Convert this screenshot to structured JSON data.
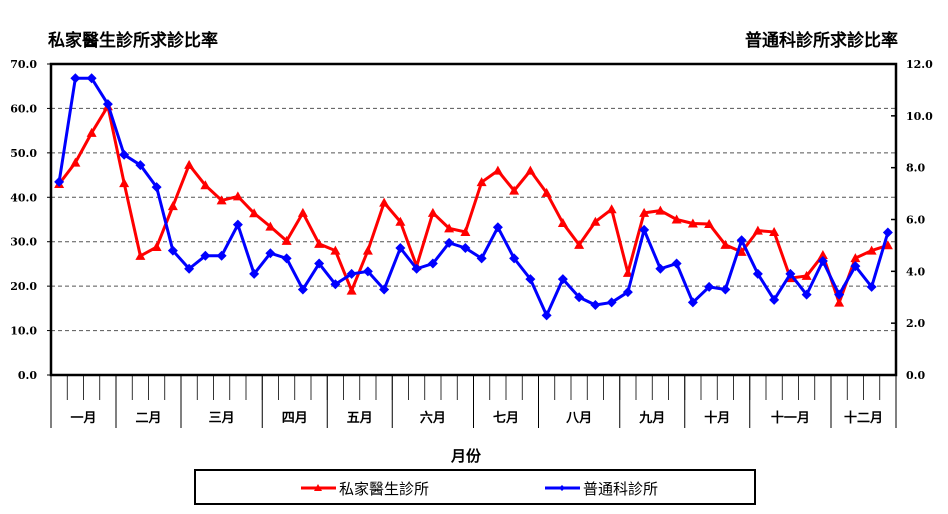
{
  "chart_data": {
    "type": "line",
    "title_left": "私家醫生診所求診比率",
    "title_right": "普通科診所求診比率",
    "xlabel": "月份",
    "months": [
      "一月",
      "二月",
      "三月",
      "四月",
      "五月",
      "六月",
      "七月",
      "八月",
      "九月",
      "十月",
      "十一月",
      "十二月"
    ],
    "weeks_per_month": [
      4,
      4,
      5,
      4,
      4,
      5,
      4,
      5,
      4,
      4,
      5,
      4
    ],
    "y_left": {
      "min": 0,
      "max": 70,
      "ticks": [
        "0.0",
        "10.0",
        "20.0",
        "30.0",
        "40.0",
        "50.0",
        "60.0",
        "70.0"
      ]
    },
    "y_right": {
      "min": 0,
      "max": 12,
      "ticks": [
        "0.0",
        "2.0",
        "4.0",
        "6.0",
        "8.0",
        "10.0",
        "12.0"
      ]
    },
    "grid": true,
    "legend_position": "bottom",
    "series": [
      {
        "name": "私家醫生診所",
        "axis": "left",
        "color": "#ff0000",
        "marker": "triangle",
        "values": [
          43,
          47.8,
          54.5,
          60.5,
          43.2,
          26.8,
          28.8,
          38,
          47.3,
          42.7,
          39.3,
          40.2,
          36.4,
          33.4,
          30.2,
          36.5,
          29.5,
          28,
          19,
          28,
          38.8,
          34.5,
          24.5,
          36.5,
          33,
          32.2,
          43.4,
          46,
          41.5,
          46,
          41,
          34.2,
          29.3,
          34.5,
          37.3,
          23,
          36.5,
          37,
          35,
          34.1,
          34,
          29.3,
          27.7,
          32.5,
          32.2,
          21.8,
          22.3,
          27,
          16.3,
          26.3,
          28,
          29.2
        ]
      },
      {
        "name": "普通科診所",
        "axis": "right",
        "color": "#0000ff",
        "marker": "diamond",
        "values": [
          7.45,
          11.45,
          11.45,
          10.45,
          8.5,
          8.1,
          7.25,
          4.8,
          4.1,
          4.6,
          4.6,
          5.8,
          3.9,
          4.7,
          4.5,
          3.3,
          4.3,
          3.5,
          3.9,
          4.0,
          3.3,
          4.9,
          4.1,
          4.3,
          5.1,
          4.9,
          4.5,
          5.7,
          4.5,
          3.7,
          2.3,
          3.7,
          3.0,
          2.7,
          2.8,
          3.2,
          5.6,
          4.1,
          4.3,
          2.8,
          3.4,
          3.3,
          5.2,
          3.9,
          2.9,
          3.9,
          3.1,
          4.4,
          3.1,
          4.2,
          3.4,
          5.5
        ]
      }
    ]
  }
}
